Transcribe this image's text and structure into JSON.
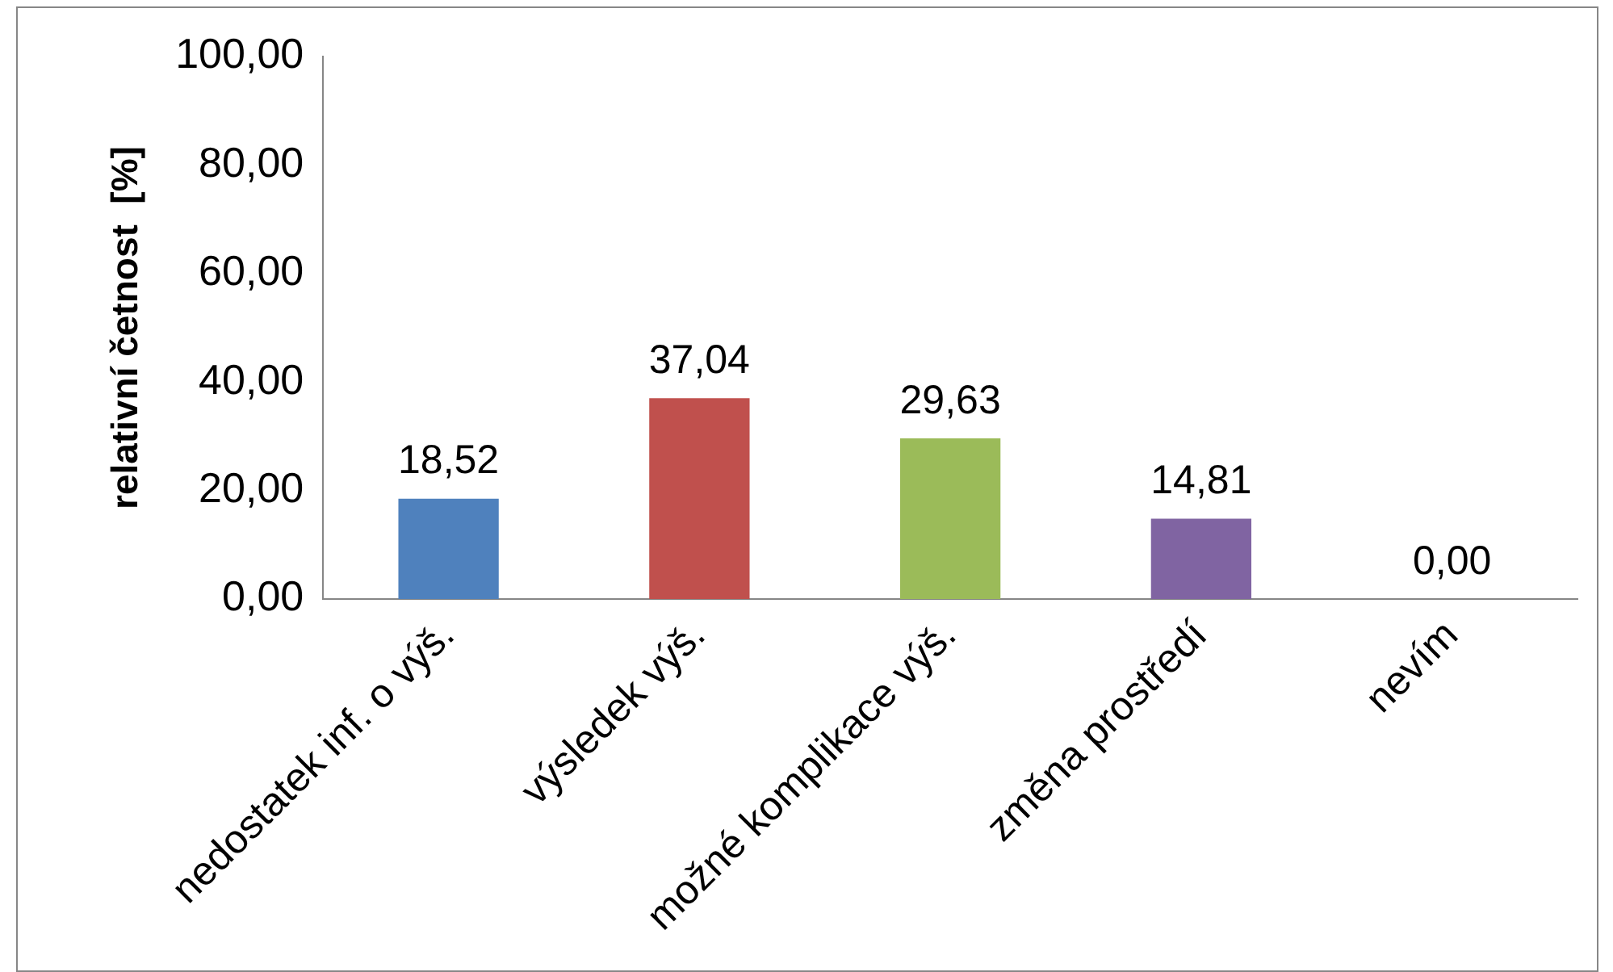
{
  "chart_data": {
    "type": "bar",
    "ylabel": "relativní četnost  [%]",
    "categories": [
      "nedostatek inf. o výš.",
      "výsledek výš.",
      "možné komplikace výš.",
      "změna prostředí",
      "nevím"
    ],
    "values": [
      18.52,
      37.04,
      29.63,
      14.81,
      0
    ],
    "colors": [
      "#4f81bd",
      "#c0504d",
      "#9bbb59",
      "#8064a2",
      "#4bacc6"
    ],
    "value_labels": [
      "18,52",
      "37,04",
      "29,63",
      "14,81",
      "0,00"
    ],
    "ylim": [
      0,
      100
    ],
    "yticks": [
      {
        "value": 0,
        "label": "0,00"
      },
      {
        "value": 20,
        "label": "20,00"
      },
      {
        "value": 40,
        "label": "40,00"
      },
      {
        "value": 60,
        "label": "60,00"
      },
      {
        "value": 80,
        "label": "80,00"
      },
      {
        "value": 100,
        "label": "100,00"
      }
    ],
    "grid": false,
    "legend": false
  }
}
